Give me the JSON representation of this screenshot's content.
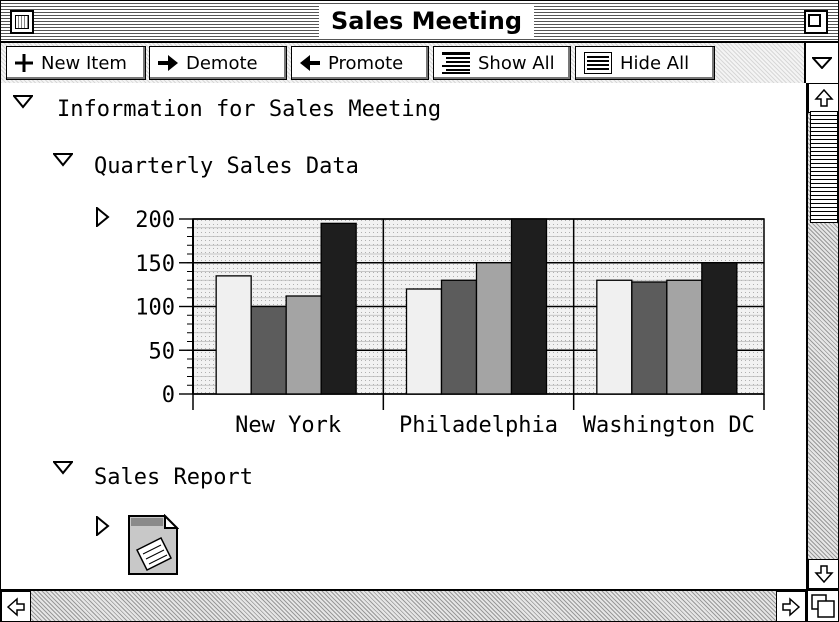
{
  "window": {
    "title": "Sales Meeting"
  },
  "toolbar": {
    "buttons": [
      {
        "label": "New Item",
        "icon": "plus-icon"
      },
      {
        "label": "Demote",
        "icon": "arrow-right-icon"
      },
      {
        "label": "Promote",
        "icon": "arrow-left-icon"
      },
      {
        "label": "Show All",
        "icon": "list-icon"
      },
      {
        "label": "Hide All",
        "icon": "list-icon"
      }
    ]
  },
  "outline": {
    "root": "Information for Sales Meeting",
    "child1": "Quarterly Sales Data",
    "child2": "Sales Report"
  },
  "chart_data": {
    "type": "bar",
    "categories": [
      "New York",
      "Philadelphia",
      "Washington DC"
    ],
    "series": [
      {
        "values": [
          135,
          120,
          130
        ],
        "color": "#f0f0f0"
      },
      {
        "values": [
          100,
          130,
          128
        ],
        "color": "#5c5c5c"
      },
      {
        "values": [
          112,
          150,
          130
        ],
        "color": "#a4a4a4"
      },
      {
        "values": [
          195,
          200,
          150
        ],
        "color": "#1e1e1e"
      }
    ],
    "yticks": [
      0,
      50,
      100,
      150,
      200
    ],
    "ylim": [
      0,
      200
    ],
    "grid": true,
    "title": "",
    "xlabel": "",
    "ylabel": ""
  }
}
